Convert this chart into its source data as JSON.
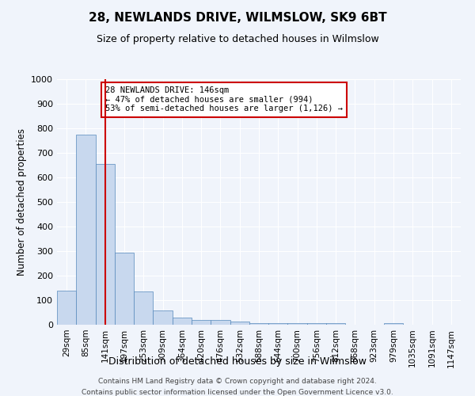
{
  "title": "28, NEWLANDS DRIVE, WILMSLOW, SK9 6BT",
  "subtitle": "Size of property relative to detached houses in Wilmslow",
  "xlabel": "Distribution of detached houses by size in Wilmslow",
  "ylabel": "Number of detached properties",
  "bar_labels": [
    "29sqm",
    "85sqm",
    "141sqm",
    "197sqm",
    "253sqm",
    "309sqm",
    "364sqm",
    "420sqm",
    "476sqm",
    "532sqm",
    "588sqm",
    "644sqm",
    "700sqm",
    "756sqm",
    "812sqm",
    "868sqm",
    "923sqm",
    "979sqm",
    "1035sqm",
    "1091sqm",
    "1147sqm"
  ],
  "bar_values": [
    140,
    775,
    655,
    295,
    137,
    57,
    28,
    20,
    18,
    14,
    7,
    6,
    6,
    6,
    5,
    0,
    0,
    8,
    0,
    0,
    0
  ],
  "bar_color": "#c8d8ee",
  "bar_edgecolor": "#5588bb",
  "marker_index": 2,
  "marker_color": "#cc0000",
  "annotation_title": "28 NEWLANDS DRIVE: 146sqm",
  "annotation_line1": "← 47% of detached houses are smaller (994)",
  "annotation_line2": "53% of semi-detached houses are larger (1,126) →",
  "annotation_box_color": "#cc0000",
  "ylim": [
    0,
    1000
  ],
  "yticks": [
    0,
    100,
    200,
    300,
    400,
    500,
    600,
    700,
    800,
    900,
    1000
  ],
  "footer1": "Contains HM Land Registry data © Crown copyright and database right 2024.",
  "footer2": "Contains public sector information licensed under the Open Government Licence v3.0.",
  "bg_color": "#f0f4fb",
  "plot_bg_color": "#f0f4fb",
  "grid_color": "#ffffff"
}
